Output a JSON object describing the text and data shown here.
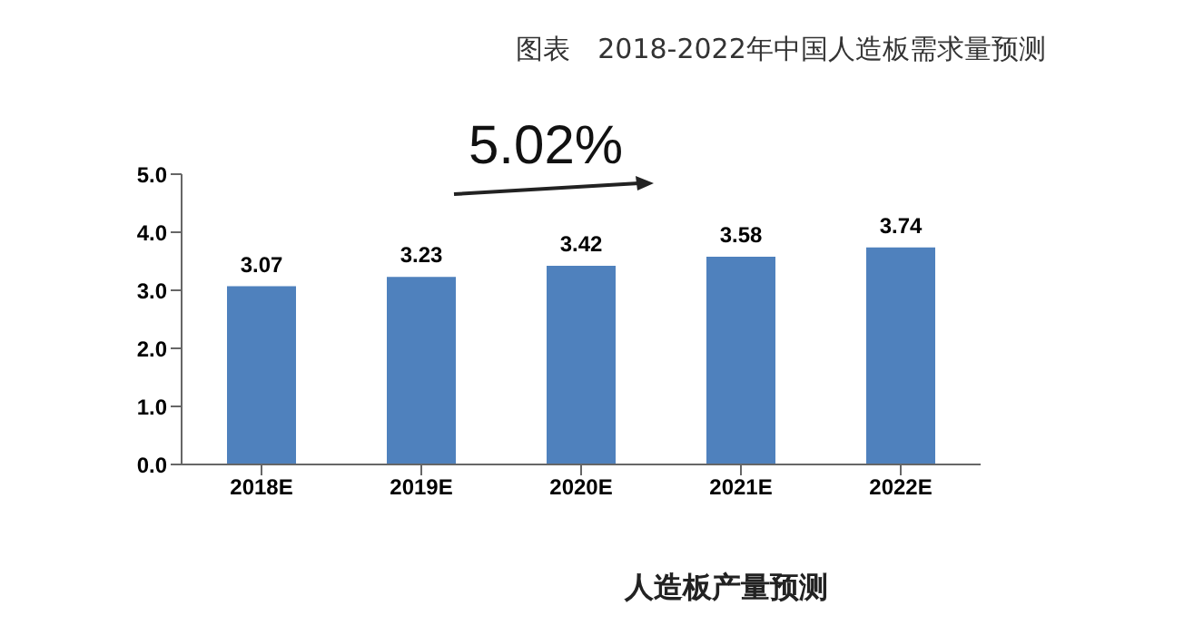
{
  "chart_data": {
    "type": "bar",
    "title": "图表　2018-2022年中国人造板需求量预测",
    "categories": [
      "2018E",
      "2019E",
      "2020E",
      "2021E",
      "2022E"
    ],
    "values": [
      3.07,
      3.23,
      3.42,
      3.58,
      3.74
    ],
    "color": "#4f81bd",
    "ylim": [
      0,
      5
    ],
    "yticks": [
      {
        "value": 0,
        "label": "0.0"
      },
      {
        "value": 1,
        "label": "1.0"
      },
      {
        "value": 2,
        "label": "2.0"
      },
      {
        "value": 3,
        "label": "3.0"
      },
      {
        "value": 4,
        "label": "4.0"
      },
      {
        "value": 5,
        "label": "5.0"
      }
    ],
    "data_labels": true,
    "annotations": [
      "5.02%",
      "人造板产量预测"
    ]
  }
}
